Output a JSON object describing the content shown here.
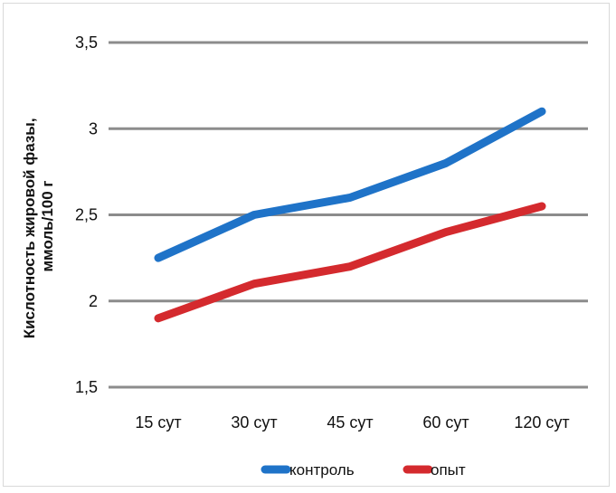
{
  "chart_data": {
    "type": "line",
    "categories": [
      "15 сут",
      "30 сут",
      "45 сут",
      "60 сут",
      "120 сут"
    ],
    "series": [
      {
        "name": "контроль",
        "color": "#1f73c8",
        "values": [
          2.25,
          2.5,
          2.6,
          2.8,
          3.1
        ]
      },
      {
        "name": "опыт",
        "color": "#d42a2e",
        "values": [
          1.9,
          2.1,
          2.2,
          2.4,
          2.55
        ]
      }
    ],
    "ylabel_line1": "Кислотность жировой фазы,",
    "ylabel_line2": "ммоль/100 г",
    "ylim": [
      1.5,
      3.5
    ],
    "yticks": [
      "1,5",
      "2",
      "2,5",
      "3",
      "3,5"
    ],
    "ytick_values": [
      1.5,
      2,
      2.5,
      3,
      3.5
    ],
    "grid": true,
    "legend_position": "bottom"
  }
}
